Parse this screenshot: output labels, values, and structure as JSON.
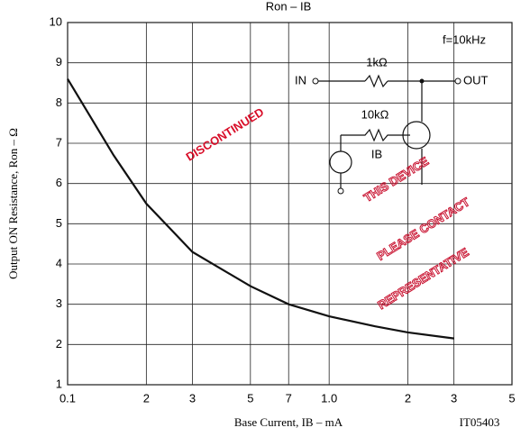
{
  "chart_data": {
    "type": "line",
    "title": "Ron – IB",
    "x_label": "Base Current, IB – mA",
    "y_label": "Output ON Resistance, Ron – Ω",
    "code": "IT05403",
    "x_scale": "log",
    "xlim": [
      0.1,
      5
    ],
    "ylim": [
      1,
      10
    ],
    "xticks": [
      0.1,
      {
        "value": 0.2,
        "label": "2"
      },
      {
        "value": 0.3,
        "label": "3"
      },
      {
        "value": 0.5,
        "label": "5"
      },
      {
        "value": 0.7,
        "label": "7"
      },
      {
        "value": 1,
        "label": "1.0"
      },
      2,
      3,
      5
    ],
    "yticks": [
      1,
      2,
      3,
      4,
      5,
      6,
      7,
      8,
      9,
      10
    ],
    "grid": true,
    "x": [
      0.1,
      0.15,
      0.2,
      0.3,
      0.5,
      0.7,
      1,
      1.5,
      2,
      3
    ],
    "series": [
      {
        "color": "#111111",
        "values": [
          8.6,
          6.7,
          5.5,
          4.3,
          3.45,
          3.0,
          2.7,
          2.45,
          2.3,
          2.15
        ]
      }
    ],
    "circuit": {
      "frequency": "f=10kHz",
      "input": "IN",
      "r1": "1kΩ",
      "output": "OUT",
      "r2": "10kΩ",
      "current": "IB"
    },
    "watermark": [
      "DISCONTINUED",
      "THIS DEVICE",
      "PLEASE CONTACT",
      "REPRESENTATIVE"
    ]
  }
}
